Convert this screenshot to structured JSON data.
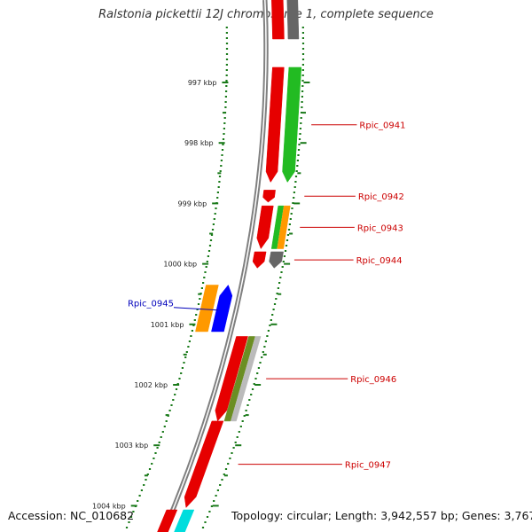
{
  "header": {
    "title": "Ralstonia pickettii 12J chromosome 1, complete sequence"
  },
  "footer": {
    "accession": "Accession: NC_010682",
    "topology": "Topology: circular; Length: 3,942,557 bp; Genes: 3,767"
  },
  "axis": {
    "unit": "kbp",
    "ticks": [
      {
        "label": "997 kbp",
        "kbp": 997
      },
      {
        "label": "998 kbp",
        "kbp": 998
      },
      {
        "label": "999 kbp",
        "kbp": 999
      },
      {
        "label": "1000 kbp",
        "kbp": 1000
      },
      {
        "label": "1001 kbp",
        "kbp": 1001
      },
      {
        "label": "1002 kbp",
        "kbp": 1002
      },
      {
        "label": "1003 kbp",
        "kbp": 1003
      },
      {
        "label": "1004 kbp",
        "kbp": 1004
      }
    ]
  },
  "colors": {
    "forward_cds": "#e60000",
    "gene_label_forward": "#cc0000",
    "gene_label_reverse": "#0000bb",
    "backbone": "#808080",
    "ruler": "#1a7a1a",
    "cog_green": "#22bb22",
    "cog_orange": "#ff9900",
    "cog_gray": "#666666",
    "cog_blue": "#0000ff",
    "cog_olive": "#6b8e23",
    "cog_lightgray": "#bbbbbb",
    "cog_cyan": "#00dddd"
  },
  "genes": [
    {
      "label": "Rpic_0941",
      "strand": "+",
      "start_kbp": 996.75,
      "end_kbp": 998.65,
      "cog_color": "#22bb22"
    },
    {
      "label": "Rpic_0942",
      "strand": "+",
      "start_kbp": 998.78,
      "end_kbp": 998.98,
      "cog_color": ""
    },
    {
      "label": "Rpic_0943",
      "strand": "+",
      "start_kbp": 999.04,
      "end_kbp": 999.75,
      "cog_color": "#ff9900"
    },
    {
      "label": "Rpic_0944",
      "strand": "+",
      "start_kbp": 999.8,
      "end_kbp": 1000.07,
      "cog_color": "#666666"
    },
    {
      "label": "Rpic_0945",
      "strand": "-",
      "start_kbp": 1000.35,
      "end_kbp": 1001.12,
      "cog_color": "#0000ff"
    },
    {
      "label": "Rpic_0946",
      "strand": "+",
      "start_kbp": 1001.2,
      "end_kbp": 1002.6,
      "cog_color": "#6b8e23"
    },
    {
      "label": "Rpic_0947",
      "strand": "+",
      "start_kbp": 1002.6,
      "end_kbp": 1004.03,
      "cog_color": ""
    }
  ]
}
